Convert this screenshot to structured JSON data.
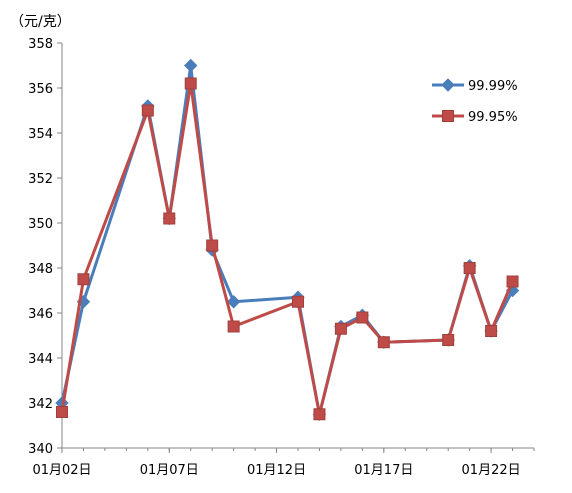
{
  "chart_data": {
    "type": "line",
    "unit_label": "（元/克）",
    "ylim": [
      340,
      358
    ],
    "yticks": [
      340,
      342,
      344,
      346,
      348,
      350,
      352,
      354,
      356,
      358
    ],
    "xlim": [
      "2013-01-02",
      "2013-01-24"
    ],
    "xtick_labels": [
      "01月02日",
      "01月07日",
      "01月12日",
      "01月17日",
      "01月22日"
    ],
    "xtick_dates": [
      "2013-01-02",
      "2013-01-07",
      "2013-01-12",
      "2013-01-17",
      "2013-01-22"
    ],
    "grid": false,
    "legend_position": "top-right",
    "series": [
      {
        "name": "99.99%",
        "color": "#4a7ebb",
        "marker": "diamond",
        "points": [
          {
            "x": "2013-01-02",
            "y": 342.0
          },
          {
            "x": "2013-01-03",
            "y": 346.5
          },
          {
            "x": "2013-01-06",
            "y": 355.2
          },
          {
            "x": "2013-01-07",
            "y": 350.2
          },
          {
            "x": "2013-01-08",
            "y": 357.0
          },
          {
            "x": "2013-01-09",
            "y": 348.8
          },
          {
            "x": "2013-01-10",
            "y": 346.5
          },
          {
            "x": "2013-01-13",
            "y": 346.7
          },
          {
            "x": "2013-01-14",
            "y": 341.5
          },
          {
            "x": "2013-01-15",
            "y": 345.4
          },
          {
            "x": "2013-01-16",
            "y": 345.9
          },
          {
            "x": "2013-01-17",
            "y": 344.7
          },
          {
            "x": "2013-01-20",
            "y": 344.8
          },
          {
            "x": "2013-01-21",
            "y": 348.1
          },
          {
            "x": "2013-01-22",
            "y": 345.2
          },
          {
            "x": "2013-01-23",
            "y": 347.0
          }
        ]
      },
      {
        "name": "99.95%",
        "color": "#be4b48",
        "marker": "square",
        "points": [
          {
            "x": "2013-01-02",
            "y": 341.6
          },
          {
            "x": "2013-01-03",
            "y": 347.5
          },
          {
            "x": "2013-01-06",
            "y": 355.0
          },
          {
            "x": "2013-01-07",
            "y": 350.2
          },
          {
            "x": "2013-01-08",
            "y": 356.2
          },
          {
            "x": "2013-01-09",
            "y": 349.0
          },
          {
            "x": "2013-01-10",
            "y": 345.4
          },
          {
            "x": "2013-01-13",
            "y": 346.5
          },
          {
            "x": "2013-01-14",
            "y": 341.5
          },
          {
            "x": "2013-01-15",
            "y": 345.3
          },
          {
            "x": "2013-01-16",
            "y": 345.8
          },
          {
            "x": "2013-01-17",
            "y": 344.7
          },
          {
            "x": "2013-01-20",
            "y": 344.8
          },
          {
            "x": "2013-01-21",
            "y": 348.0
          },
          {
            "x": "2013-01-22",
            "y": 345.2
          },
          {
            "x": "2013-01-23",
            "y": 347.4
          }
        ]
      }
    ]
  }
}
